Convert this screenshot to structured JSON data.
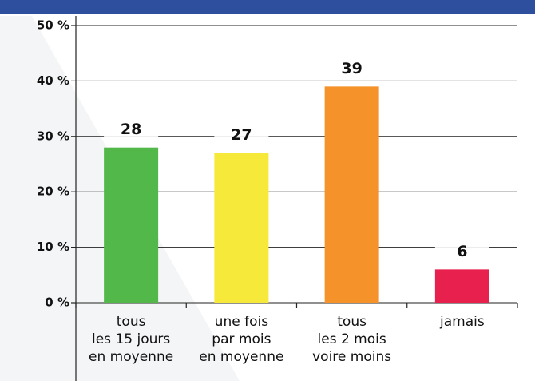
{
  "chart_data": {
    "type": "bar",
    "categories": [
      "tous\nles 15 jours\nen moyenne",
      "une fois\npar mois\nen moyenne",
      "tous\nles 2 mois\nvoire moins",
      "jamais"
    ],
    "values": [
      28,
      27,
      39,
      6
    ],
    "colors": [
      "#52b84a",
      "#f7e93a",
      "#f5922a",
      "#e8204e"
    ],
    "ylim": [
      0,
      50
    ],
    "yticks": [
      {
        "value": 0,
        "label": "0 %"
      },
      {
        "value": 10,
        "label": "10 %"
      },
      {
        "value": 20,
        "label": "20 %"
      },
      {
        "value": 30,
        "label": "30 %"
      },
      {
        "value": 40,
        "label": "40 %"
      },
      {
        "value": 50,
        "label": "50 %"
      }
    ],
    "grid": true
  }
}
